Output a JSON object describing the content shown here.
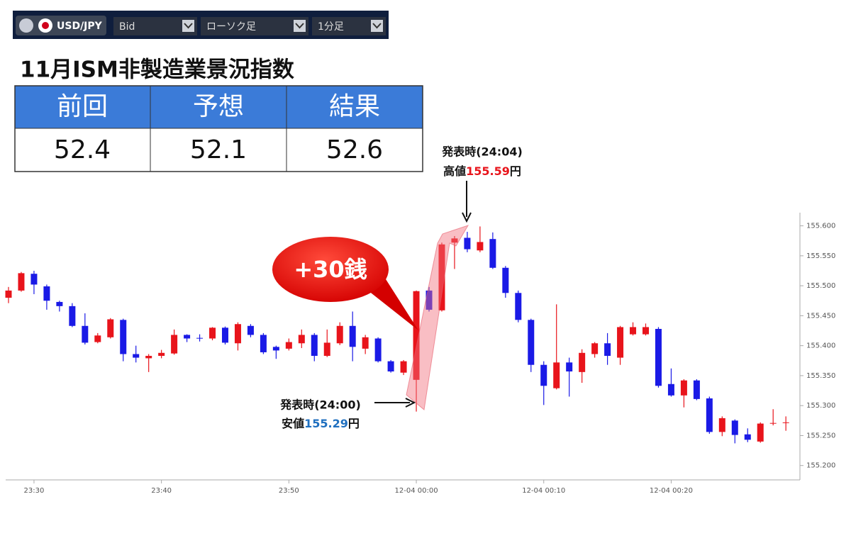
{
  "toolbar": {
    "pair": "USD/JPY",
    "price_type": "Bid",
    "chart_type": "ローソク足",
    "interval": "1分足"
  },
  "table": {
    "title": "11月ISM非製造業景況指数",
    "headers": [
      "前回",
      "予想",
      "結果"
    ],
    "rows": [
      [
        "52.4",
        "52.1",
        "52.6"
      ]
    ]
  },
  "chart_data": {
    "type": "candlestick",
    "categories": [
      null,
      null,
      "23:30",
      null,
      null,
      null,
      null,
      null,
      null,
      null,
      null,
      null,
      "23:40",
      null,
      null,
      null,
      null,
      null,
      null,
      null,
      null,
      null,
      "23:50",
      null,
      null,
      null,
      null,
      null,
      null,
      null,
      null,
      null,
      "12-04 00:00",
      null,
      null,
      null,
      null,
      null,
      null,
      null,
      null,
      null,
      "12-04 00:10",
      null,
      null,
      null,
      null,
      null,
      null,
      null,
      null,
      null,
      "12-04 00:20",
      null,
      null,
      null,
      null,
      null,
      null,
      null,
      null,
      null
    ],
    "open": [
      155.48,
      155.492,
      155.52,
      155.499,
      155.473,
      155.466,
      155.433,
      155.406,
      155.414,
      155.443,
      155.386,
      155.379,
      155.383,
      155.387,
      155.418,
      155.413,
      155.412,
      155.43,
      155.404,
      155.433,
      155.418,
      155.398,
      155.395,
      155.404,
      155.418,
      155.383,
      155.404,
      155.433,
      155.395,
      155.412,
      155.374,
      155.355,
      155.343,
      155.492,
      155.459,
      155.572,
      155.58,
      155.559,
      155.578,
      155.53,
      155.488,
      155.443,
      155.368,
      155.329,
      155.372,
      155.356,
      155.386,
      155.404,
      155.38,
      155.419,
      155.419,
      155.428,
      155.336,
      155.317,
      155.342,
      155.312,
      155.256,
      155.275,
      155.252,
      155.24,
      155.27,
      155.271
    ],
    "high": [
      155.498,
      155.523,
      155.525,
      155.502,
      155.475,
      155.471,
      155.454,
      155.421,
      155.446,
      155.445,
      155.4,
      155.386,
      155.393,
      155.427,
      155.419,
      155.419,
      155.431,
      155.432,
      155.439,
      155.436,
      155.421,
      155.4,
      155.412,
      155.427,
      155.421,
      155.427,
      155.439,
      155.457,
      155.418,
      155.414,
      155.376,
      155.376,
      155.492,
      155.498,
      155.572,
      155.583,
      155.59,
      155.599,
      155.589,
      155.533,
      155.492,
      155.445,
      155.374,
      155.469,
      155.38,
      155.394,
      155.406,
      155.421,
      155.433,
      155.439,
      155.437,
      155.431,
      155.362,
      155.344,
      155.344,
      155.315,
      155.282,
      155.277,
      155.262,
      155.272,
      155.294,
      155.282
    ],
    "low": [
      155.471,
      155.49,
      155.486,
      155.46,
      155.457,
      155.431,
      155.402,
      155.404,
      155.412,
      155.374,
      155.372,
      155.356,
      155.379,
      155.385,
      155.406,
      155.407,
      155.409,
      155.402,
      155.392,
      155.414,
      155.386,
      155.378,
      155.392,
      155.396,
      155.374,
      155.381,
      155.401,
      155.374,
      155.386,
      155.372,
      155.355,
      155.351,
      155.29,
      155.457,
      155.457,
      155.528,
      155.556,
      155.556,
      155.528,
      155.48,
      155.439,
      155.356,
      155.301,
      155.327,
      155.315,
      155.338,
      155.38,
      155.368,
      155.368,
      155.417,
      155.417,
      155.33,
      155.315,
      155.297,
      155.309,
      155.253,
      155.249,
      155.237,
      155.239,
      155.238,
      155.267,
      155.258
    ],
    "close": [
      155.492,
      155.521,
      155.502,
      155.475,
      155.466,
      155.433,
      155.405,
      155.417,
      155.444,
      155.386,
      155.38,
      155.383,
      155.388,
      155.418,
      155.412,
      155.412,
      155.43,
      155.405,
      155.436,
      155.418,
      155.389,
      155.392,
      155.406,
      155.418,
      155.383,
      155.405,
      155.433,
      155.398,
      155.414,
      155.374,
      155.357,
      155.374,
      155.491,
      155.46,
      155.569,
      155.579,
      155.561,
      155.573,
      155.53,
      155.488,
      155.443,
      155.368,
      155.333,
      155.372,
      155.357,
      155.388,
      155.404,
      155.383,
      155.431,
      155.431,
      155.431,
      155.333,
      155.317,
      155.342,
      155.311,
      155.256,
      155.279,
      155.251,
      155.243,
      155.27,
      155.271,
      155.272
    ],
    "up_color": "#e8141b",
    "down_color": "#1a1ae6",
    "ylim": [
      155.176,
      155.622
    ],
    "yticks": [
      {
        "value": 155.2,
        "label": "155.200"
      },
      {
        "value": 155.25,
        "label": "155.250"
      },
      {
        "value": 155.3,
        "label": "155.300"
      },
      {
        "value": 155.35,
        "label": "155.350"
      },
      {
        "value": 155.4,
        "label": "155.400"
      },
      {
        "value": 155.45,
        "label": "155.450"
      },
      {
        "value": 155.5,
        "label": "155.500"
      },
      {
        "value": 155.55,
        "label": "155.550"
      },
      {
        "value": 155.6,
        "label": "155.600"
      }
    ],
    "annotations": {
      "callout": "+30銭",
      "high": {
        "label": "発表時(24:04)",
        "prefix": "高値",
        "price": "155.59",
        "unit": "円"
      },
      "low": {
        "label": "発表時(24:00)",
        "prefix": "安値",
        "price": "155.29",
        "unit": "円"
      }
    }
  }
}
